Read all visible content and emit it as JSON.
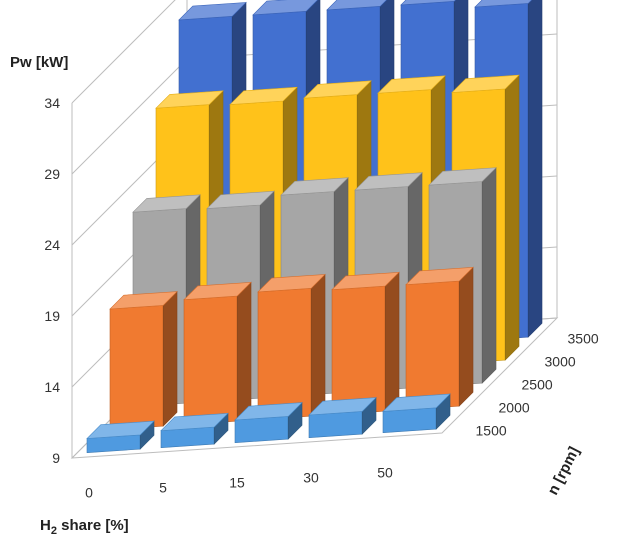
{
  "chart_data": {
    "type": "bar-3d",
    "title": "",
    "zlabel": "Pw [kW]",
    "xlabel": "H2 share [%]",
    "ylabel": "n [rpm]",
    "x_categories": [
      "0",
      "5",
      "15",
      "30",
      "50"
    ],
    "y_categories": [
      "1500",
      "2000",
      "2500",
      "3000",
      "3500"
    ],
    "z_ticks": [
      "9",
      "14",
      "19",
      "24",
      "29",
      "34"
    ],
    "zlim": [
      9,
      34
    ],
    "grid": true,
    "series": [
      {
        "rpm": "1500",
        "color": "#4f9ae0",
        "values": [
          10.0,
          10.2,
          10.6,
          10.6,
          10.5
        ]
      },
      {
        "rpm": "2000",
        "color": "#f07a30",
        "values": [
          17.5,
          17.8,
          18.0,
          17.8,
          17.8
        ]
      },
      {
        "rpm": "2500",
        "color": "#a6a6a6",
        "values": [
          22.7,
          22.6,
          23.2,
          23.2,
          23.2
        ]
      },
      {
        "rpm": "3000",
        "color": "#ffc21a",
        "values": [
          28.4,
          28.3,
          28.4,
          28.4,
          28.1
        ]
      },
      {
        "rpm": "3500",
        "color": "#4270d0",
        "values": [
          33.0,
          33.0,
          33.0,
          33.0,
          32.5
        ]
      }
    ]
  }
}
